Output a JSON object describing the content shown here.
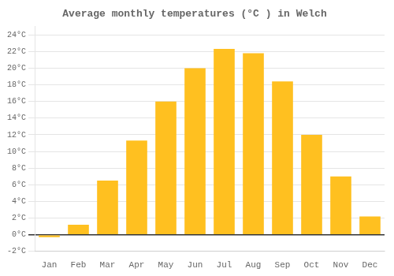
{
  "chart_data": {
    "type": "bar",
    "title": "Average monthly temperatures (°C ) in Welch",
    "categories": [
      "Jan",
      "Feb",
      "Mar",
      "Apr",
      "May",
      "Jun",
      "Jul",
      "Aug",
      "Sep",
      "Oct",
      "Nov",
      "Dec"
    ],
    "values": [
      -0.3,
      1.2,
      6.5,
      11.3,
      16.0,
      20.0,
      22.3,
      21.8,
      18.4,
      12.0,
      7.0,
      2.2
    ],
    "color": "#FFC020",
    "ylim": [
      -2,
      25
    ],
    "yticks": [
      {
        "value": -2,
        "label": "-2°C"
      },
      {
        "value": 0,
        "label": "0°C"
      },
      {
        "value": 2,
        "label": "2°C"
      },
      {
        "value": 4,
        "label": "4°C"
      },
      {
        "value": 6,
        "label": "6°C"
      },
      {
        "value": 8,
        "label": "8°C"
      },
      {
        "value": 10,
        "label": "10°C"
      },
      {
        "value": 12,
        "label": "12°C"
      },
      {
        "value": 14,
        "label": "14°C"
      },
      {
        "value": 16,
        "label": "16°C"
      },
      {
        "value": 18,
        "label": "18°C"
      },
      {
        "value": 20,
        "label": "20°C"
      },
      {
        "value": 22,
        "label": "22°C"
      },
      {
        "value": 24,
        "label": "24°C"
      }
    ],
    "grid": true
  }
}
